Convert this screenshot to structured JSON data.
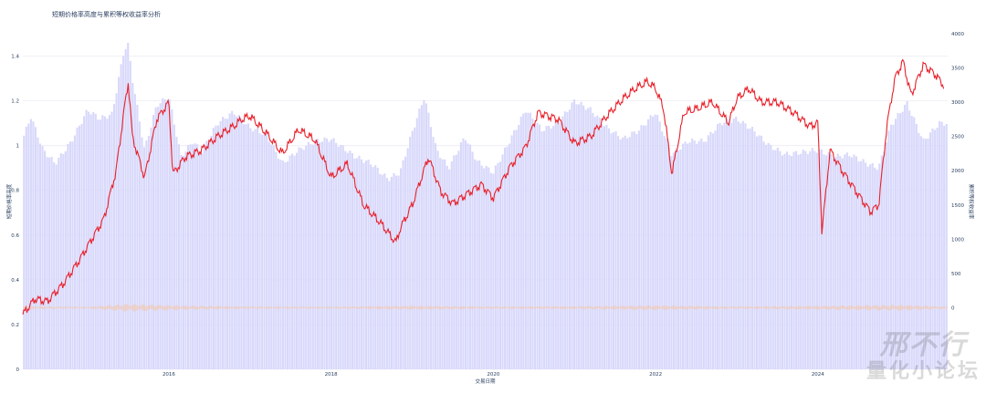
{
  "chart_data": {
    "type": "bar+line",
    "title": "短期价格率高度与累积等权收益率分析",
    "xlabel": "交易日期",
    "ylabel_left": "短期价格率高度",
    "ylabel_right": "累积等权收益率",
    "ylim_left": [
      0,
      1.5
    ],
    "ylim_right": [
      -900,
      4000
    ],
    "xlim": [
      2014.2,
      2025.6
    ],
    "x_ticks": [
      "2016",
      "2018",
      "2020",
      "2022",
      "2024"
    ],
    "y_left_ticks": [
      "0",
      "0.2",
      "0.4",
      "0.6",
      "0.8",
      "1",
      "1.2",
      "1.4"
    ],
    "y_right_ticks": [
      "0",
      "500",
      "1000",
      "1500",
      "2000",
      "2500",
      "3000",
      "3500",
      "4000"
    ],
    "grid": true,
    "series": [
      {
        "type": "bar",
        "axis": "left",
        "color": "#d8d8fb",
        "x": [
          2014.2,
          2014.3,
          2014.45,
          2014.6,
          2014.8,
          2015.0,
          2015.15,
          2015.3,
          2015.45,
          2015.5,
          2015.55,
          2015.7,
          2015.85,
          2016.0,
          2016.15,
          2016.3,
          2016.4,
          2016.6,
          2016.8,
          2017.0,
          2017.2,
          2017.4,
          2017.6,
          2017.8,
          2018.0,
          2018.3,
          2018.5,
          2018.7,
          2018.85,
          2019.0,
          2019.15,
          2019.3,
          2019.45,
          2019.65,
          2019.8,
          2020.0,
          2020.2,
          2020.4,
          2020.6,
          2020.8,
          2021.0,
          2021.2,
          2021.4,
          2021.6,
          2021.8,
          2022.0,
          2022.2,
          2022.4,
          2022.6,
          2022.8,
          2023.0,
          2023.2,
          2023.4,
          2023.6,
          2023.8,
          2024.0,
          2024.2,
          2024.4,
          2024.6,
          2024.75,
          2024.9,
          2025.1,
          2025.3,
          2025.5
        ],
        "values": [
          1.03,
          1.13,
          0.98,
          0.92,
          1.02,
          1.16,
          1.12,
          1.14,
          1.43,
          1.45,
          1.3,
          0.98,
          1.18,
          1.22,
          0.95,
          1.02,
          0.97,
          1.1,
          1.15,
          1.08,
          1.05,
          0.92,
          0.98,
          1.02,
          1.03,
          0.95,
          0.92,
          0.85,
          0.88,
          1.06,
          1.22,
          0.98,
          0.9,
          1.04,
          0.93,
          0.88,
          1.02,
          1.16,
          1.07,
          1.1,
          1.2,
          1.16,
          1.08,
          1.03,
          1.07,
          1.15,
          0.96,
          1.02,
          1.02,
          1.1,
          1.12,
          1.07,
          1.0,
          0.96,
          0.97,
          0.98,
          0.95,
          0.96,
          0.92,
          0.9,
          1.09,
          1.19,
          1.02,
          1.1
        ]
      },
      {
        "type": "line",
        "axis": "right",
        "color": "#e8202a",
        "x": [
          2014.2,
          2014.35,
          2014.5,
          2014.7,
          2014.9,
          2015.0,
          2015.2,
          2015.35,
          2015.45,
          2015.5,
          2015.55,
          2015.7,
          2015.85,
          2016.0,
          2016.05,
          2016.2,
          2016.4,
          2016.6,
          2016.8,
          2016.9,
          2017.0,
          2017.2,
          2017.4,
          2017.6,
          2017.8,
          2018.0,
          2018.2,
          2018.4,
          2018.6,
          2018.8,
          2018.85,
          2019.0,
          2019.2,
          2019.35,
          2019.5,
          2019.7,
          2019.85,
          2020.0,
          2020.2,
          2020.4,
          2020.55,
          2020.8,
          2021.0,
          2021.2,
          2021.4,
          2021.6,
          2021.75,
          2021.9,
          2022.0,
          2022.1,
          2022.2,
          2022.35,
          2022.5,
          2022.7,
          2022.9,
          2023.0,
          2023.15,
          2023.3,
          2023.5,
          2023.7,
          2023.9,
          2024.0,
          2024.05,
          2024.15,
          2024.3,
          2024.5,
          2024.65,
          2024.75,
          2024.85,
          2024.95,
          2025.05,
          2025.15,
          2025.3,
          2025.45,
          2025.55
        ],
        "values": [
          -100,
          130,
          90,
          350,
          700,
          900,
          1300,
          2000,
          2900,
          3300,
          2500,
          1900,
          2750,
          3000,
          1950,
          2200,
          2300,
          2500,
          2650,
          2750,
          2800,
          2550,
          2250,
          2600,
          2450,
          1900,
          2100,
          1500,
          1250,
          950,
          1150,
          1500,
          2200,
          1700,
          1520,
          1680,
          1800,
          1600,
          2050,
          2350,
          2850,
          2750,
          2400,
          2500,
          2800,
          3050,
          3200,
          3300,
          3200,
          2900,
          1950,
          2850,
          2900,
          3000,
          2700,
          3050,
          3200,
          3000,
          3000,
          2850,
          2650,
          2700,
          1100,
          2300,
          2000,
          1650,
          1400,
          1500,
          2650,
          3350,
          3600,
          3100,
          3550,
          3400,
          3250
        ]
      },
      {
        "type": "area",
        "axis": "right",
        "color": "#f5c6a8",
        "note_visible": false,
        "x": [
          2014.2,
          2015.0,
          2015.5,
          2016.0,
          2017.0,
          2018.0,
          2019.0,
          2020.0,
          2021.0,
          2022.0,
          2023.0,
          2024.0,
          2025.0,
          2025.5
        ],
        "values": [
          15,
          10,
          40,
          25,
          12,
          10,
          20,
          12,
          15,
          25,
          12,
          20,
          30,
          15
        ]
      }
    ]
  },
  "watermark": {
    "line1": "邢不行",
    "line2": "量化小论坛"
  }
}
